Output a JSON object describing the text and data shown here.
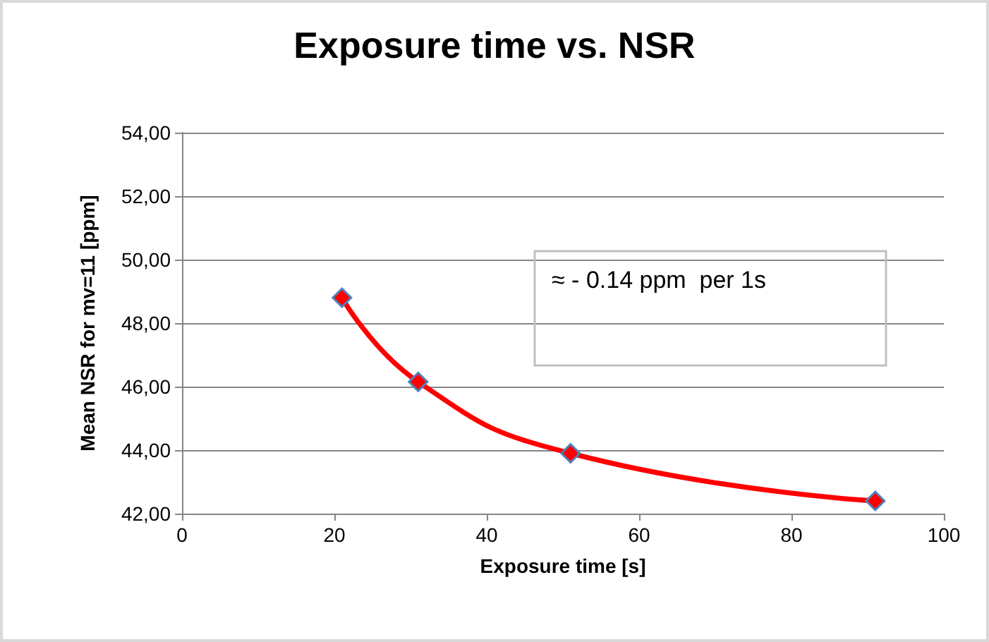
{
  "chart_data": {
    "type": "line",
    "title": "Exposure time vs. NSR",
    "xlabel": "Exposure time [s]",
    "ylabel": "Mean NSR for mv=11 [ppm]",
    "annotations": [
      "≈ - 0.14 ppm  per 1s"
    ],
    "x": [
      21,
      31,
      51,
      91
    ],
    "series": [
      {
        "color": "#ff0000",
        "values": [
          48.8,
          46.15,
          43.9,
          42.4
        ]
      }
    ],
    "xlim": [
      0,
      100
    ],
    "xticks": [
      0,
      20,
      40,
      60,
      80,
      100
    ],
    "ylim": [
      42,
      54
    ],
    "yticks": [
      {
        "value": 42,
        "label": "42,00"
      },
      {
        "value": 44,
        "label": "44,00"
      },
      {
        "value": 46,
        "label": "46,00"
      },
      {
        "value": 48,
        "label": "48,00"
      },
      {
        "value": 50,
        "label": "50,00"
      },
      {
        "value": 52,
        "label": "52,00"
      },
      {
        "value": 54,
        "label": "54,00"
      }
    ],
    "grid": "y",
    "marker": "diamond",
    "line_style": "solid"
  }
}
